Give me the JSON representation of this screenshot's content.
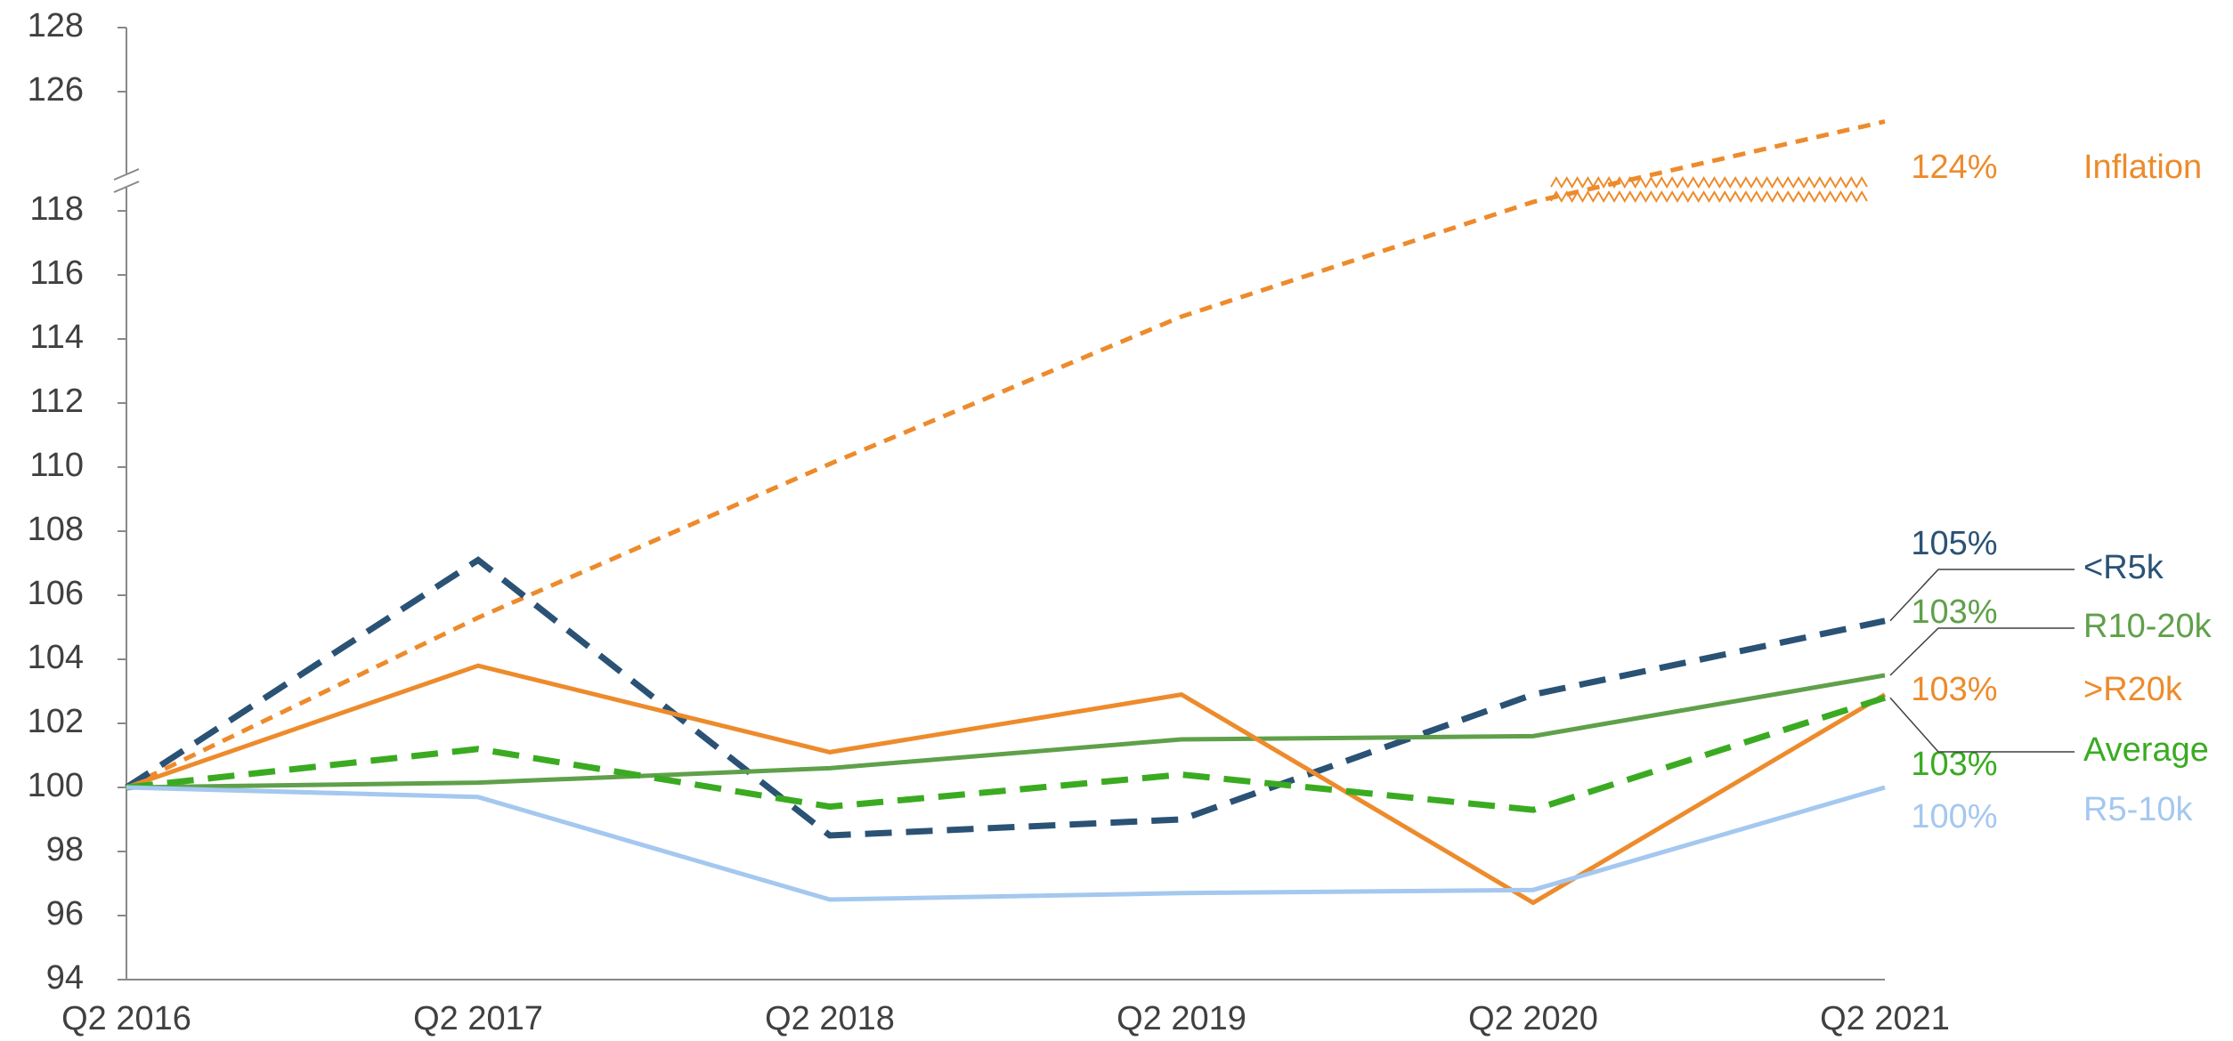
{
  "chart_data": {
    "type": "line",
    "categories": [
      "Q2 2016",
      "Q2 2017",
      "Q2 2018",
      "Q2 2019",
      "Q2 2020",
      "Q2 2021"
    ],
    "ylim": [
      94,
      128
    ],
    "yticks": [
      94,
      96,
      98,
      100,
      102,
      104,
      106,
      108,
      110,
      112,
      114,
      116,
      118,
      126,
      128
    ],
    "axis_break": true,
    "series": [
      {
        "name": "Inflation",
        "color": "#ed8b2c",
        "dash": "short",
        "values": [
          100,
          105.3,
          110.1,
          114.7,
          118.6,
          124
        ],
        "value_labels": [
          null,
          null,
          null,
          null,
          null,
          "124%"
        ]
      },
      {
        "name": "<R5k",
        "color": "#2a5275",
        "dash": "long",
        "values": [
          100,
          107.1,
          98.5,
          99.0,
          102.9,
          105.2
        ],
        "value_labels": [
          null,
          null,
          null,
          null,
          null,
          "105%"
        ]
      },
      {
        "name": "R10-20k",
        "color": "#5fa04a",
        "dash": "solid",
        "values": [
          100,
          100.15,
          100.6,
          101.5,
          101.6,
          103.5
        ],
        "value_labels": [
          null,
          null,
          null,
          null,
          null,
          "103%"
        ]
      },
      {
        "name": ">R20k",
        "color": "#ed8b2c",
        "dash": "solid",
        "values": [
          100,
          103.8,
          101.1,
          102.9,
          96.4,
          102.9
        ],
        "value_labels": [
          null,
          null,
          null,
          null,
          null,
          "103%"
        ]
      },
      {
        "name": "Average",
        "color": "#3aab21",
        "dash": "long",
        "values": [
          100,
          101.2,
          99.4,
          100.4,
          99.3,
          102.8
        ],
        "value_labels": [
          null,
          null,
          null,
          null,
          null,
          "103%"
        ]
      },
      {
        "name": "R5-10k",
        "color": "#a4c8ef",
        "dash": "solid",
        "values": [
          100,
          99.7,
          96.5,
          96.7,
          96.8,
          100
        ],
        "value_labels": [
          null,
          null,
          null,
          null,
          null,
          "100%"
        ]
      }
    ]
  }
}
